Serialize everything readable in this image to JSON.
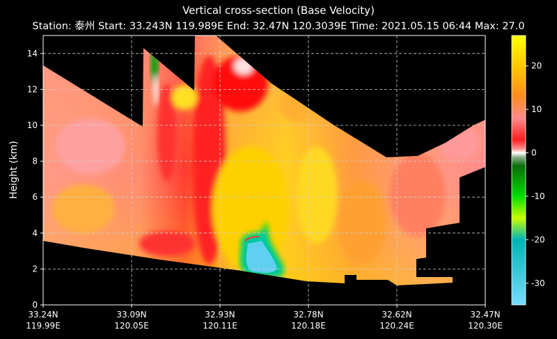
{
  "chart_data": {
    "type": "heatmap",
    "title": "Vertical cross-section (Base Velocity)",
    "subtitle": "Station: 泰州 Start: 33.243N 119.989E End: 32.47N 120.3039E Time: 2021.05.15 06:44 Max: 27.0",
    "ylabel": "Height (km)",
    "ylim": [
      0,
      15
    ],
    "yticks": [
      "0",
      "2",
      "4",
      "6",
      "8",
      "10",
      "12",
      "14"
    ],
    "xticks": [
      {
        "lat": "33.24N",
        "lon": "119.99E"
      },
      {
        "lat": "33.09N",
        "lon": "120.05E"
      },
      {
        "lat": "32.93N",
        "lon": "120.11E"
      },
      {
        "lat": "32.78N",
        "lon": "120.18E"
      },
      {
        "lat": "32.62N",
        "lon": "120.24E"
      },
      {
        "lat": "32.47N",
        "lon": "120.30E"
      }
    ],
    "grid": true,
    "colorbar": {
      "ticks": [
        "20",
        "10",
        "0",
        "-10",
        "-20",
        "-30"
      ],
      "range": [
        -35,
        27
      ],
      "stops": [
        {
          "v": 27,
          "c": "#ffff00"
        },
        {
          "v": 20,
          "c": "#ffc800"
        },
        {
          "v": 13,
          "c": "#ff8c1e"
        },
        {
          "v": 8,
          "c": "#ff8c8c"
        },
        {
          "v": 3,
          "c": "#ff1e1e"
        },
        {
          "v": 1,
          "c": "#ff8a8a"
        },
        {
          "v": 0,
          "c": "#ffffff"
        },
        {
          "v": -1,
          "c": "#8ab08a"
        },
        {
          "v": -3,
          "c": "#0a6e0a"
        },
        {
          "v": -10,
          "c": "#00dc00"
        },
        {
          "v": -15,
          "c": "#c8ff00"
        },
        {
          "v": -20,
          "c": "#00b4b4"
        },
        {
          "v": -35,
          "c": "#78dcff"
        }
      ]
    }
  }
}
